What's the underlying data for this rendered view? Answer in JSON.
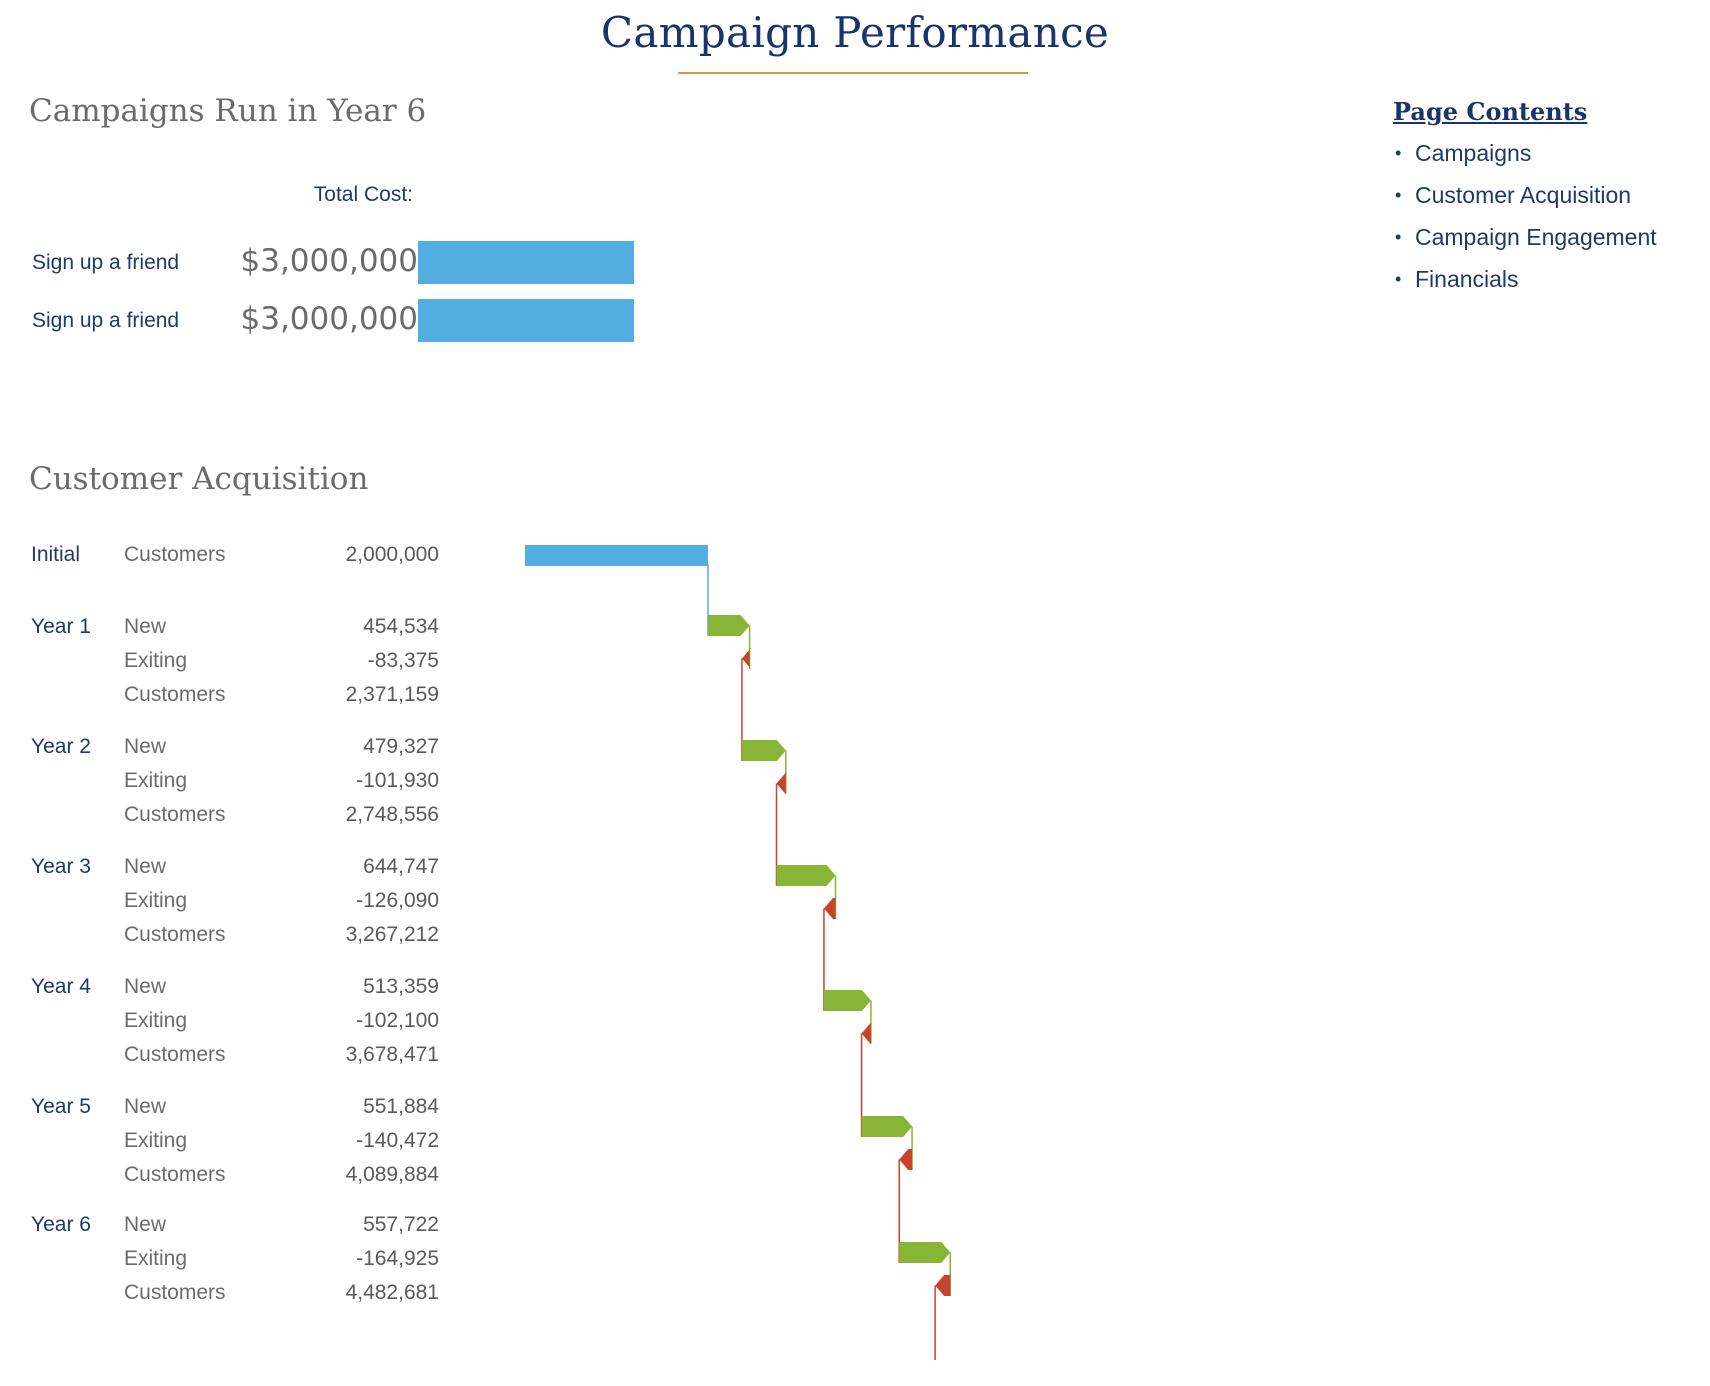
{
  "page_title": "Campaign Performance",
  "campaigns_section": {
    "heading": "Campaigns Run in Year 6",
    "cost_header": "Total Cost:",
    "rows": [
      {
        "name": "Sign up a friend",
        "cost": "$3,000,000"
      },
      {
        "name": "Sign up a friend",
        "cost": "$3,000,000"
      }
    ],
    "bar_color": "#52aee0"
  },
  "page_contents": {
    "heading": "Page Contents",
    "bullet": "•",
    "items": [
      "Campaigns",
      "Customer Acquisition",
      "Campaign Engagement",
      "Financials"
    ]
  },
  "acquisition_section": {
    "heading": "Customer Acquisition",
    "rows": [
      {
        "year": "Initial",
        "metric": "Customers",
        "value": "2,000,000"
      },
      {
        "year": "Year 1",
        "metric": "New",
        "value": "454,534"
      },
      {
        "year": "",
        "metric": "Exiting",
        "value": "-83,375"
      },
      {
        "year": "",
        "metric": "Customers",
        "value": "2,371,159"
      },
      {
        "year": "Year 2",
        "metric": "New",
        "value": "479,327"
      },
      {
        "year": "",
        "metric": "Exiting",
        "value": "-101,930"
      },
      {
        "year": "",
        "metric": "Customers",
        "value": "2,748,556"
      },
      {
        "year": "Year 3",
        "metric": "New",
        "value": "644,747"
      },
      {
        "year": "",
        "metric": "Exiting",
        "value": "-126,090"
      },
      {
        "year": "",
        "metric": "Customers",
        "value": "3,267,212"
      },
      {
        "year": "Year 4",
        "metric": "New",
        "value": "513,359"
      },
      {
        "year": "",
        "metric": "Exiting",
        "value": "-102,100"
      },
      {
        "year": "",
        "metric": "Customers",
        "value": "3,678,471"
      },
      {
        "year": "Year 5",
        "metric": "New",
        "value": "551,884"
      },
      {
        "year": "",
        "metric": "Exiting",
        "value": "-140,472"
      },
      {
        "year": "",
        "metric": "Customers",
        "value": "4,089,884"
      },
      {
        "year": "Year 6",
        "metric": "New",
        "value": "557,722"
      },
      {
        "year": "",
        "metric": "Exiting",
        "value": "-164,925"
      },
      {
        "year": "",
        "metric": "Customers",
        "value": "4,482,681"
      }
    ]
  },
  "colors": {
    "title": "#17346b",
    "title_rule": "#d3954a",
    "initial_bar": "#52aee0",
    "new_bar": "#88b536",
    "exiting_bar": "#c8432b"
  },
  "chart_data": {
    "type": "waterfall",
    "initial": 2000000,
    "steps": [
      {
        "year": "Year 1",
        "new": 454534,
        "exiting": -83375,
        "customers": 2371159
      },
      {
        "year": "Year 2",
        "new": 479327,
        "exiting": -101930,
        "customers": 2748556
      },
      {
        "year": "Year 3",
        "new": 644747,
        "exiting": -126090,
        "customers": 3267212
      },
      {
        "year": "Year 4",
        "new": 513359,
        "exiting": -102100,
        "customers": 3678471
      },
      {
        "year": "Year 5",
        "new": 551884,
        "exiting": -140472,
        "customers": 4089884
      },
      {
        "year": "Year 6",
        "new": 557722,
        "exiting": -164925,
        "customers": 4482681
      }
    ]
  }
}
